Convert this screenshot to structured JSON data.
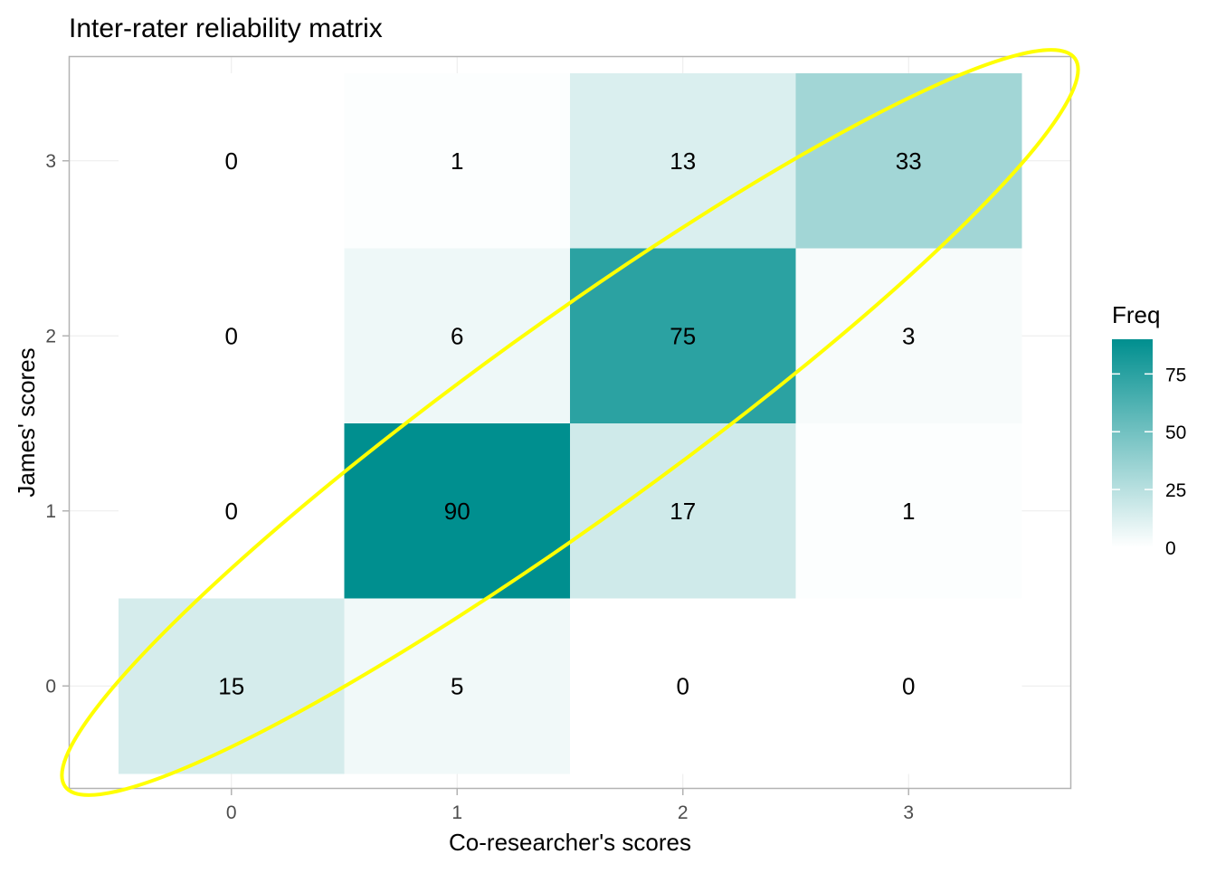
{
  "chart_data": {
    "type": "heatmap",
    "title": "Inter-rater reliability matrix",
    "xlabel": "Co-researcher's scores",
    "ylabel": "James' scores",
    "x_categories": [
      "0",
      "1",
      "2",
      "3"
    ],
    "y_categories": [
      "0",
      "1",
      "2",
      "3"
    ],
    "cells": [
      {
        "x": "0",
        "y": "3",
        "value": 0
      },
      {
        "x": "1",
        "y": "3",
        "value": 1
      },
      {
        "x": "2",
        "y": "3",
        "value": 13
      },
      {
        "x": "3",
        "y": "3",
        "value": 33
      },
      {
        "x": "0",
        "y": "2",
        "value": 0
      },
      {
        "x": "1",
        "y": "2",
        "value": 6
      },
      {
        "x": "2",
        "y": "2",
        "value": 75
      },
      {
        "x": "3",
        "y": "2",
        "value": 3
      },
      {
        "x": "0",
        "y": "1",
        "value": 0
      },
      {
        "x": "1",
        "y": "1",
        "value": 90
      },
      {
        "x": "2",
        "y": "1",
        "value": 17
      },
      {
        "x": "3",
        "y": "1",
        "value": 1
      },
      {
        "x": "0",
        "y": "0",
        "value": 15
      },
      {
        "x": "1",
        "y": "0",
        "value": 5
      },
      {
        "x": "2",
        "y": "0",
        "value": 0
      },
      {
        "x": "3",
        "y": "0",
        "value": 0
      }
    ],
    "legend": {
      "title": "Freq",
      "ticks": [
        0,
        25,
        50,
        75
      ],
      "range": [
        0,
        90
      ],
      "placement": "right"
    },
    "colors": {
      "low": "#FFFFFF",
      "high": "#008F8F",
      "annotation": "#FFFF00"
    },
    "grid": true
  }
}
